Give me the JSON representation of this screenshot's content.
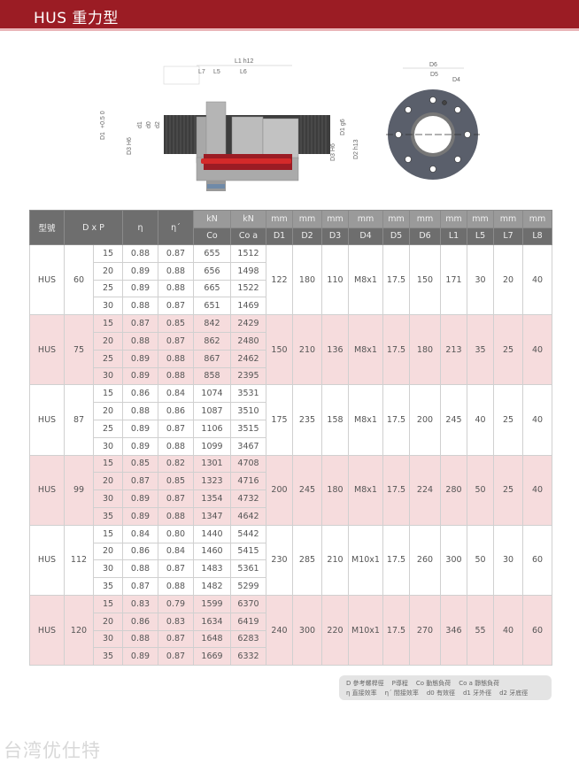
{
  "header": {
    "title": "HUS 重力型"
  },
  "diagram": {
    "labels": {
      "l1": "L1 h12",
      "l7": "L7",
      "l5": "L5",
      "l6": "L6",
      "d1": "D1",
      "tol": "+0.5\n0",
      "d3h6": "D3 H6",
      "d1s": "d1",
      "d0": "d0",
      "d2s": "d2",
      "d1g6": "D1 g6",
      "d3h6r": "D3 H6",
      "d2h13": "D2 h13",
      "d6": "D6",
      "d5": "D5",
      "d4": "D4"
    }
  },
  "table": {
    "head_top": [
      "型號",
      "D x P",
      "η",
      "η´",
      "kN",
      "kN",
      "mm",
      "mm",
      "mm",
      "mm",
      "mm",
      "mm",
      "mm",
      "mm",
      "mm",
      "mm"
    ],
    "head_bottom": [
      "Co",
      "Co a",
      "D1",
      "D2",
      "D3",
      "D4",
      "D5",
      "D6",
      "L1",
      "L5",
      "L7",
      "L8"
    ],
    "groups": [
      {
        "model": "HUS",
        "d": "60",
        "rows": [
          [
            "15",
            "0.88",
            "0.87",
            "655",
            "1512"
          ],
          [
            "20",
            "0.89",
            "0.88",
            "656",
            "1498"
          ],
          [
            "25",
            "0.89",
            "0.88",
            "665",
            "1522"
          ],
          [
            "30",
            "0.88",
            "0.87",
            "651",
            "1469"
          ]
        ],
        "dims": [
          "122",
          "180",
          "110",
          "M8x1",
          "17.5",
          "150",
          "171",
          "30",
          "20",
          "40"
        ]
      },
      {
        "model": "HUS",
        "d": "75",
        "rows": [
          [
            "15",
            "0.87",
            "0.85",
            "842",
            "2429"
          ],
          [
            "20",
            "0.88",
            "0.87",
            "862",
            "2480"
          ],
          [
            "25",
            "0.89",
            "0.88",
            "867",
            "2462"
          ],
          [
            "30",
            "0.89",
            "0.88",
            "858",
            "2395"
          ]
        ],
        "dims": [
          "150",
          "210",
          "136",
          "M8x1",
          "17.5",
          "180",
          "213",
          "35",
          "25",
          "40"
        ]
      },
      {
        "model": "HUS",
        "d": "87",
        "rows": [
          [
            "15",
            "0.86",
            "0.84",
            "1074",
            "3531"
          ],
          [
            "20",
            "0.88",
            "0.86",
            "1087",
            "3510"
          ],
          [
            "25",
            "0.89",
            "0.87",
            "1106",
            "3515"
          ],
          [
            "30",
            "0.89",
            "0.88",
            "1099",
            "3467"
          ]
        ],
        "dims": [
          "175",
          "235",
          "158",
          "M8x1",
          "17.5",
          "200",
          "245",
          "40",
          "25",
          "40"
        ]
      },
      {
        "model": "HUS",
        "d": "99",
        "rows": [
          [
            "15",
            "0.85",
            "0.82",
            "1301",
            "4708"
          ],
          [
            "20",
            "0.87",
            "0.85",
            "1323",
            "4716"
          ],
          [
            "30",
            "0.89",
            "0.87",
            "1354",
            "4732"
          ],
          [
            "35",
            "0.89",
            "0.88",
            "1347",
            "4642"
          ]
        ],
        "dims": [
          "200",
          "245",
          "180",
          "M8x1",
          "17.5",
          "224",
          "280",
          "50",
          "25",
          "40"
        ]
      },
      {
        "model": "HUS",
        "d": "112",
        "rows": [
          [
            "15",
            "0.84",
            "0.80",
            "1440",
            "5442"
          ],
          [
            "20",
            "0.86",
            "0.84",
            "1460",
            "5415"
          ],
          [
            "30",
            "0.88",
            "0.87",
            "1483",
            "5361"
          ],
          [
            "35",
            "0.87",
            "0.88",
            "1482",
            "5299"
          ]
        ],
        "dims": [
          "230",
          "285",
          "210",
          "M10x1",
          "17.5",
          "260",
          "300",
          "50",
          "30",
          "60"
        ]
      },
      {
        "model": "HUS",
        "d": "120",
        "rows": [
          [
            "15",
            "0.83",
            "0.79",
            "1599",
            "6370"
          ],
          [
            "20",
            "0.86",
            "0.83",
            "1634",
            "6419"
          ],
          [
            "30",
            "0.88",
            "0.87",
            "1648",
            "6283"
          ],
          [
            "35",
            "0.89",
            "0.87",
            "1669",
            "6332"
          ]
        ],
        "dims": [
          "240",
          "300",
          "220",
          "M10x1",
          "17.5",
          "270",
          "346",
          "55",
          "40",
          "60"
        ]
      }
    ]
  },
  "legend": {
    "line1": [
      "D 參考螺桿徑",
      "P導程",
      "Co 動態負荷",
      "Co a 靜態負荷"
    ],
    "line2": [
      "η 直接效率",
      "η´ 間接效率",
      "d0 有效徑",
      "d1 牙外徑",
      "d2 牙底徑"
    ]
  },
  "watermark": "台湾优仕特",
  "colors": {
    "header": "#9b1c24",
    "pink_row": "#f6dcdd",
    "table_head": "#6e6e6e"
  }
}
